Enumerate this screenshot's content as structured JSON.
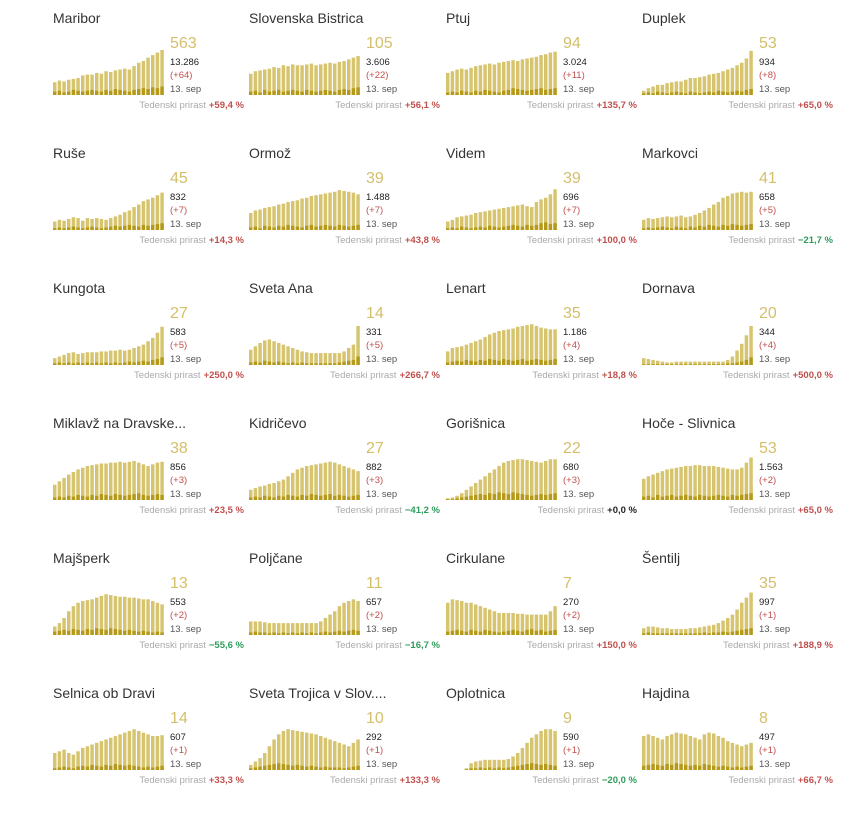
{
  "colors": {
    "bar": "#d6c46e",
    "bar_dark": "#b59a1a",
    "big_number": "#d4bf6a",
    "increase": "#c0504d",
    "decrease": "#2e9d5b"
  },
  "weekly_label": "Tedenski prirast",
  "chart_data": [
    {
      "type": "bar",
      "title": "Maribor",
      "current": "563",
      "total": "13.286",
      "delta": "(+64)",
      "date": "13. sep",
      "weekly": "+59,4 %",
      "trend": "pos",
      "values": [
        15,
        17,
        16,
        18,
        19,
        20,
        23,
        24,
        24,
        26,
        25,
        28,
        27,
        29,
        30,
        31,
        30,
        34,
        38,
        40,
        44,
        47,
        50,
        53
      ],
      "highlight": [
        4,
        5,
        3,
        4,
        6,
        5,
        4,
        5,
        6,
        5,
        4,
        6,
        5,
        7,
        6,
        5,
        4,
        6,
        7,
        8,
        7,
        9,
        8,
        10
      ]
    },
    {
      "type": "bar",
      "title": "Slovenska Bistrica",
      "current": "105",
      "total": "3.606",
      "delta": "(+22)",
      "date": "13. sep",
      "weekly": "+56,1 %",
      "trend": "pos",
      "values": [
        25,
        28,
        29,
        30,
        31,
        33,
        32,
        35,
        34,
        36,
        35,
        35,
        36,
        37,
        35,
        36,
        37,
        38,
        37,
        39,
        40,
        42,
        44,
        46
      ],
      "highlight": [
        4,
        5,
        3,
        6,
        4,
        5,
        6,
        4,
        5,
        6,
        5,
        4,
        6,
        5,
        4,
        5,
        6,
        5,
        4,
        6,
        7,
        6,
        8,
        9
      ]
    },
    {
      "type": "bar",
      "title": "Ptuj",
      "current": "94",
      "total": "3.024",
      "delta": "(+11)",
      "date": "13. sep",
      "weekly": "+135,7 %",
      "trend": "pos",
      "values": [
        26,
        28,
        30,
        31,
        30,
        32,
        34,
        35,
        36,
        37,
        36,
        38,
        39,
        40,
        41,
        40,
        42,
        43,
        44,
        45,
        47,
        48,
        50,
        51
      ],
      "highlight": [
        3,
        4,
        3,
        5,
        4,
        3,
        5,
        4,
        6,
        5,
        4,
        3,
        5,
        6,
        8,
        7,
        6,
        5,
        6,
        7,
        8,
        6,
        7,
        8
      ]
    },
    {
      "type": "bar",
      "title": "Duplek",
      "current": "53",
      "total": "934",
      "delta": "(+8)",
      "date": "13. sep",
      "weekly": "+65,0 %",
      "trend": "pos",
      "values": [
        5,
        8,
        10,
        12,
        12,
        14,
        15,
        16,
        16,
        18,
        20,
        20,
        21,
        22,
        24,
        25,
        26,
        28,
        30,
        32,
        35,
        38,
        43,
        52
      ],
      "highlight": [
        2,
        3,
        2,
        4,
        3,
        2,
        3,
        4,
        3,
        2,
        4,
        3,
        2,
        3,
        4,
        3,
        5,
        4,
        3,
        4,
        5,
        4,
        6,
        7
      ]
    },
    {
      "type": "bar",
      "title": "Ruše",
      "current": "45",
      "total": "832",
      "delta": "(+7)",
      "date": "13. sep",
      "weekly": "+14,3 %",
      "trend": "pos",
      "values": [
        10,
        12,
        11,
        13,
        15,
        14,
        11,
        14,
        13,
        14,
        13,
        12,
        14,
        16,
        18,
        21,
        23,
        27,
        30,
        34,
        36,
        38,
        41,
        44
      ],
      "highlight": [
        2,
        3,
        2,
        3,
        4,
        3,
        2,
        3,
        4,
        3,
        2,
        3,
        4,
        5,
        4,
        5,
        6,
        5,
        4,
        6,
        5,
        6,
        7,
        8
      ]
    },
    {
      "type": "bar",
      "title": "Ormož",
      "current": "39",
      "total": "1.488",
      "delta": "(+7)",
      "date": "13. sep",
      "weekly": "+43,8 %",
      "trend": "pos",
      "values": [
        20,
        23,
        24,
        26,
        27,
        28,
        30,
        31,
        33,
        34,
        35,
        37,
        38,
        40,
        41,
        42,
        43,
        44,
        45,
        47,
        46,
        45,
        44,
        42
      ],
      "highlight": [
        3,
        4,
        2,
        5,
        4,
        3,
        5,
        4,
        6,
        5,
        4,
        3,
        5,
        6,
        4,
        5,
        6,
        5,
        4,
        6,
        5,
        4,
        5,
        6
      ]
    },
    {
      "type": "bar",
      "title": "Videm",
      "current": "39",
      "total": "696",
      "delta": "(+7)",
      "date": "13. sep",
      "weekly": "+100,0 %",
      "trend": "pos",
      "values": [
        10,
        12,
        15,
        16,
        17,
        18,
        20,
        21,
        22,
        23,
        24,
        25,
        26,
        27,
        28,
        29,
        30,
        28,
        27,
        33,
        36,
        38,
        42,
        48
      ],
      "highlight": [
        2,
        3,
        2,
        4,
        3,
        2,
        3,
        4,
        3,
        5,
        4,
        3,
        4,
        5,
        6,
        5,
        4,
        6,
        5,
        6,
        8,
        9,
        7,
        8
      ]
    },
    {
      "type": "bar",
      "title": "Markovci",
      "current": "41",
      "total": "658",
      "delta": "(+5)",
      "date": "13. sep",
      "weekly": "−21,7 %",
      "trend": "neg",
      "values": [
        12,
        14,
        13,
        14,
        15,
        16,
        15,
        16,
        17,
        15,
        16,
        18,
        20,
        23,
        26,
        30,
        33,
        38,
        40,
        43,
        44,
        45,
        44,
        45
      ],
      "highlight": [
        2,
        3,
        2,
        3,
        4,
        3,
        2,
        4,
        3,
        2,
        4,
        3,
        5,
        4,
        6,
        5,
        4,
        6,
        5,
        7,
        6,
        5,
        6,
        7
      ]
    },
    {
      "type": "bar",
      "title": "Kungota",
      "current": "27",
      "total": "583",
      "delta": "(+5)",
      "date": "13. sep",
      "weekly": "+250,0 %",
      "trend": "pos",
      "values": [
        8,
        10,
        12,
        14,
        15,
        13,
        14,
        15,
        15,
        15,
        16,
        16,
        17,
        17,
        18,
        17,
        18,
        20,
        22,
        24,
        28,
        32,
        38,
        45
      ],
      "highlight": [
        2,
        3,
        2,
        3,
        2,
        3,
        2,
        3,
        2,
        3,
        2,
        3,
        2,
        3,
        2,
        3,
        4,
        3,
        4,
        5,
        4,
        6,
        7,
        9
      ]
    },
    {
      "type": "bar",
      "title": "Sveta Ana",
      "current": "14",
      "total": "331",
      "delta": "(+5)",
      "date": "13. sep",
      "weekly": "+266,7 %",
      "trend": "pos",
      "values": [
        18,
        22,
        26,
        29,
        30,
        28,
        26,
        24,
        22,
        20,
        18,
        16,
        15,
        14,
        14,
        14,
        14,
        14,
        14,
        14,
        16,
        20,
        24,
        46
      ],
      "highlight": [
        3,
        4,
        3,
        5,
        4,
        3,
        4,
        3,
        2,
        3,
        2,
        3,
        2,
        2,
        2,
        2,
        2,
        2,
        2,
        3,
        4,
        5,
        6,
        10
      ]
    },
    {
      "type": "bar",
      "title": "Lenart",
      "current": "35",
      "total": "1.186",
      "delta": "(+4)",
      "date": "13. sep",
      "weekly": "+18,8 %",
      "trend": "pos",
      "values": [
        16,
        20,
        21,
        22,
        24,
        26,
        28,
        30,
        33,
        36,
        38,
        40,
        41,
        42,
        43,
        45,
        46,
        47,
        48,
        46,
        44,
        43,
        42,
        42
      ],
      "highlight": [
        3,
        4,
        5,
        4,
        6,
        5,
        4,
        6,
        5,
        7,
        6,
        5,
        7,
        6,
        5,
        6,
        7,
        5,
        6,
        7,
        6,
        5,
        6,
        7
      ]
    },
    {
      "type": "bar",
      "title": "Dornava",
      "current": "20",
      "total": "344",
      "delta": "(+4)",
      "date": "13. sep",
      "weekly": "+500,0 %",
      "trend": "pos",
      "values": [
        8,
        7,
        6,
        5,
        4,
        3,
        3,
        4,
        4,
        4,
        4,
        4,
        4,
        4,
        4,
        4,
        4,
        4,
        6,
        10,
        17,
        25,
        35,
        46
      ],
      "highlight": [
        1,
        1,
        1,
        1,
        1,
        1,
        1,
        1,
        1,
        1,
        1,
        1,
        1,
        1,
        1,
        1,
        1,
        1,
        2,
        2,
        3,
        4,
        6,
        9
      ]
    },
    {
      "type": "bar",
      "title": "Miklavž na Dravske...",
      "current": "38",
      "total": "856",
      "delta": "(+3)",
      "date": "13. sep",
      "weekly": "+23,5 %",
      "trend": "pos",
      "values": [
        18,
        22,
        26,
        30,
        33,
        36,
        38,
        40,
        41,
        42,
        43,
        43,
        44,
        44,
        45,
        44,
        45,
        46,
        44,
        42,
        40,
        42,
        44,
        45
      ],
      "highlight": [
        3,
        4,
        3,
        5,
        4,
        6,
        5,
        4,
        6,
        5,
        7,
        6,
        5,
        7,
        6,
        5,
        6,
        7,
        8,
        6,
        5,
        6,
        7,
        6
      ]
    },
    {
      "type": "bar",
      "title": "Kidričevo",
      "current": "27",
      "total": "882",
      "delta": "(+3)",
      "date": "13. sep",
      "weekly": "−41,2 %",
      "trend": "neg",
      "values": [
        12,
        14,
        16,
        17,
        19,
        20,
        22,
        24,
        28,
        32,
        36,
        38,
        40,
        41,
        42,
        43,
        44,
        45,
        44,
        42,
        40,
        38,
        36,
        34
      ],
      "highlight": [
        3,
        4,
        3,
        5,
        4,
        3,
        5,
        4,
        6,
        5,
        4,
        6,
        5,
        7,
        6,
        5,
        6,
        7,
        5,
        6,
        5,
        4,
        5,
        6
      ]
    },
    {
      "type": "bar",
      "title": "Gorišnica",
      "current": "22",
      "total": "680",
      "delta": "(+3)",
      "date": "13. sep",
      "weekly": "+0,0 %",
      "trend": "zero",
      "values": [
        2,
        3,
        5,
        8,
        12,
        16,
        20,
        24,
        28,
        32,
        36,
        40,
        44,
        46,
        47,
        48,
        48,
        47,
        46,
        45,
        44,
        46,
        48,
        48
      ],
      "highlight": [
        1,
        1,
        2,
        3,
        4,
        5,
        6,
        7,
        6,
        8,
        7,
        9,
        8,
        7,
        9,
        8,
        7,
        6,
        5,
        6,
        7,
        6,
        7,
        8
      ]
    },
    {
      "type": "bar",
      "title": "Hoče - Slivnica",
      "current": "53",
      "total": "1.563",
      "delta": "(+2)",
      "date": "13. sep",
      "weekly": "+65,0 %",
      "trend": "pos",
      "values": [
        25,
        28,
        30,
        32,
        34,
        36,
        37,
        38,
        39,
        40,
        40,
        41,
        41,
        40,
        40,
        40,
        39,
        38,
        37,
        36,
        36,
        38,
        44,
        50
      ],
      "highlight": [
        4,
        5,
        3,
        6,
        4,
        5,
        6,
        4,
        5,
        6,
        5,
        4,
        6,
        5,
        4,
        5,
        6,
        5,
        4,
        6,
        5,
        6,
        7,
        8
      ]
    },
    {
      "type": "bar",
      "title": "Majšperk",
      "current": "13",
      "total": "553",
      "delta": "(+2)",
      "date": "13. sep",
      "weekly": "−55,6 %",
      "trend": "neg",
      "values": [
        10,
        14,
        20,
        28,
        34,
        38,
        40,
        41,
        42,
        44,
        46,
        48,
        47,
        46,
        45,
        45,
        44,
        44,
        43,
        42,
        42,
        40,
        38,
        36
      ],
      "highlight": [
        4,
        5,
        6,
        5,
        7,
        6,
        5,
        7,
        6,
        8,
        7,
        6,
        8,
        7,
        6,
        5,
        6,
        5,
        4,
        5,
        4,
        3,
        4,
        3
      ]
    },
    {
      "type": "bar",
      "title": "Poljčane",
      "current": "11",
      "total": "657",
      "delta": "(+2)",
      "date": "13. sep",
      "weekly": "−16,7 %",
      "trend": "neg",
      "values": [
        16,
        16,
        16,
        15,
        14,
        14,
        14,
        14,
        14,
        14,
        14,
        14,
        14,
        14,
        14,
        16,
        20,
        24,
        28,
        34,
        38,
        40,
        42,
        40
      ],
      "highlight": [
        3,
        4,
        3,
        3,
        2,
        3,
        2,
        3,
        2,
        3,
        2,
        3,
        2,
        3,
        2,
        3,
        4,
        3,
        4,
        5,
        4,
        5,
        6,
        5
      ]
    },
    {
      "type": "bar",
      "title": "Cirkulane",
      "current": "7",
      "total": "270",
      "delta": "(+2)",
      "date": "13. sep",
      "weekly": "+150,0 %",
      "trend": "pos",
      "values": [
        38,
        42,
        41,
        40,
        38,
        38,
        36,
        34,
        32,
        30,
        28,
        26,
        26,
        26,
        26,
        25,
        25,
        24,
        24,
        24,
        24,
        24,
        28,
        34
      ],
      "highlight": [
        4,
        5,
        6,
        5,
        4,
        6,
        5,
        4,
        6,
        5,
        4,
        3,
        4,
        5,
        6,
        5,
        4,
        6,
        7,
        5,
        6,
        4,
        5,
        6
      ]
    },
    {
      "type": "bar",
      "title": "Šentilj",
      "current": "35",
      "total": "997",
      "delta": "(+1)",
      "date": "13. sep",
      "weekly": "+188,9 %",
      "trend": "pos",
      "values": [
        8,
        10,
        10,
        9,
        8,
        8,
        7,
        7,
        7,
        7,
        8,
        8,
        9,
        10,
        11,
        12,
        14,
        17,
        20,
        24,
        30,
        38,
        44,
        50
      ],
      "highlight": [
        2,
        3,
        2,
        2,
        2,
        2,
        2,
        2,
        2,
        2,
        2,
        2,
        2,
        3,
        2,
        3,
        3,
        4,
        3,
        4,
        5,
        6,
        7,
        8
      ]
    },
    {
      "type": "bar",
      "title": "Selnica ob Dravi",
      "current": "14",
      "total": "607",
      "delta": "(+1)",
      "date": "13. sep",
      "weekly": "+33,3 %",
      "trend": "pos",
      "values": [
        20,
        22,
        24,
        20,
        18,
        22,
        26,
        28,
        30,
        32,
        34,
        36,
        38,
        40,
        42,
        44,
        46,
        48,
        46,
        44,
        42,
        40,
        40,
        41
      ],
      "highlight": [
        2,
        3,
        4,
        3,
        2,
        4,
        5,
        4,
        6,
        5,
        4,
        6,
        5,
        7,
        6,
        5,
        6,
        5,
        4,
        3,
        4,
        3,
        4,
        5
      ]
    },
    {
      "type": "bar",
      "title": "Sveta Trojica v Slov....",
      "current": "10",
      "total": "292",
      "delta": "(+1)",
      "date": "13. sep",
      "weekly": "+133,3 %",
      "trend": "pos",
      "values": [
        6,
        10,
        14,
        20,
        28,
        36,
        42,
        46,
        48,
        47,
        46,
        45,
        44,
        43,
        42,
        40,
        38,
        36,
        34,
        32,
        30,
        28,
        32,
        36
      ],
      "highlight": [
        2,
        3,
        4,
        5,
        6,
        7,
        8,
        7,
        6,
        5,
        6,
        5,
        4,
        5,
        4,
        3,
        4,
        3,
        3,
        3,
        2,
        3,
        4,
        5
      ]
    },
    {
      "type": "bar",
      "title": "Oplotnica",
      "current": "9",
      "total": "590",
      "delta": "(+1)",
      "date": "13. sep",
      "weekly": "−20,0 %",
      "trend": "neg",
      "values": [
        0,
        0,
        0,
        0,
        2,
        8,
        10,
        11,
        12,
        12,
        12,
        12,
        12,
        13,
        16,
        20,
        26,
        32,
        38,
        42,
        46,
        48,
        48,
        46
      ],
      "highlight": [
        0,
        0,
        0,
        0,
        1,
        2,
        2,
        3,
        2,
        3,
        2,
        3,
        2,
        3,
        4,
        5,
        6,
        7,
        8,
        7,
        6,
        7,
        6,
        5
      ]
    },
    {
      "type": "bar",
      "title": "Hajdina",
      "current": "8",
      "total": "497",
      "delta": "(+1)",
      "date": "13. sep",
      "weekly": "+66,7 %",
      "trend": "pos",
      "values": [
        40,
        42,
        40,
        38,
        36,
        40,
        42,
        44,
        43,
        42,
        40,
        38,
        36,
        42,
        44,
        43,
        40,
        38,
        34,
        32,
        30,
        28,
        30,
        32
      ],
      "highlight": [
        5,
        6,
        7,
        6,
        5,
        7,
        6,
        8,
        7,
        6,
        5,
        6,
        5,
        7,
        6,
        5,
        4,
        5,
        4,
        3,
        4,
        3,
        4,
        5
      ]
    }
  ]
}
